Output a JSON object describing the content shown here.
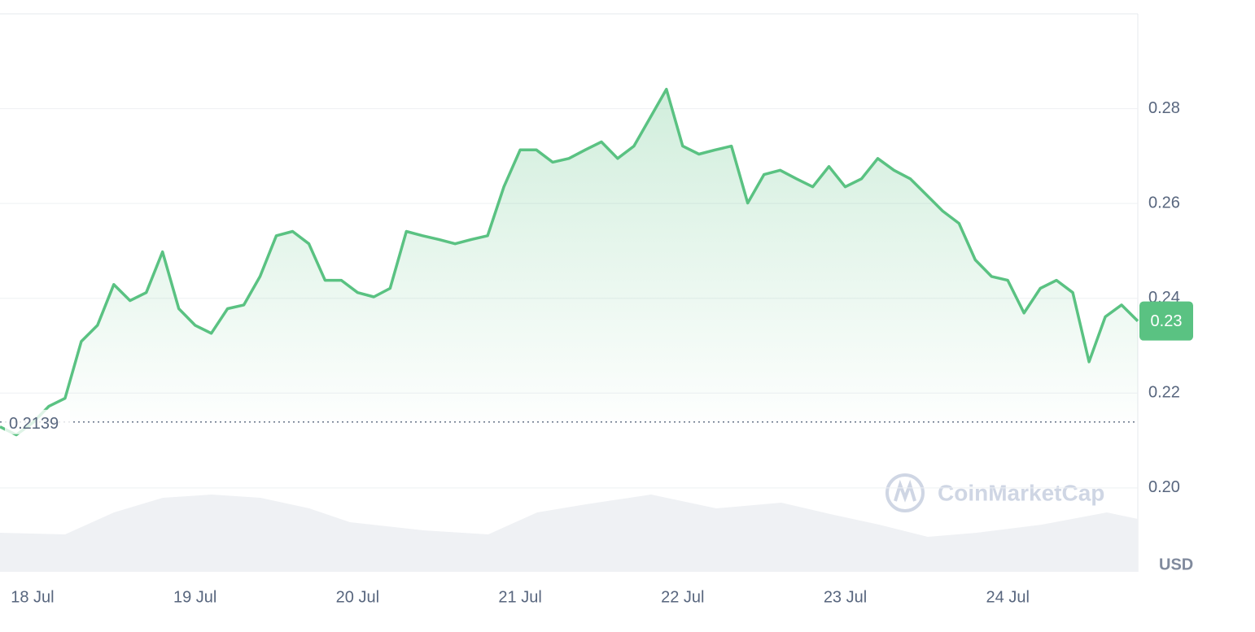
{
  "chart_data": {
    "type": "line",
    "x": [
      17.8,
      17.9,
      18.0,
      18.1,
      18.2,
      18.3,
      18.4,
      18.5,
      18.6,
      18.7,
      18.8,
      18.9,
      19.0,
      19.1,
      19.2,
      19.3,
      19.4,
      19.5,
      19.6,
      19.7,
      19.8,
      19.9,
      20.0,
      20.1,
      20.2,
      20.3,
      20.4,
      20.5,
      20.6,
      20.7,
      20.8,
      20.9,
      21.0,
      21.1,
      21.2,
      21.3,
      21.4,
      21.5,
      21.6,
      21.7,
      21.8,
      21.9,
      22.0,
      22.1,
      22.2,
      22.3,
      22.4,
      22.5,
      22.6,
      22.7,
      22.8,
      22.9,
      23.0,
      23.1,
      23.2,
      23.3,
      23.4,
      23.5,
      23.6,
      23.7,
      23.8,
      23.9,
      24.0,
      24.1,
      24.2,
      24.3,
      24.4,
      24.5,
      24.6,
      24.7,
      24.8
    ],
    "series": [
      {
        "color": "#5ac282",
        "values": [
          0.2129,
          0.2112,
          0.2137,
          0.2172,
          0.2189,
          0.2309,
          0.2343,
          0.2429,
          0.2395,
          0.2412,
          0.2498,
          0.2378,
          0.2343,
          0.2326,
          0.2378,
          0.2386,
          0.2446,
          0.2532,
          0.2541,
          0.2515,
          0.2438,
          0.2438,
          0.2412,
          0.2403,
          0.2421,
          0.2541,
          0.2532,
          0.2524,
          0.2515,
          0.2524,
          0.2532,
          0.2635,
          0.2713,
          0.2713,
          0.2687,
          0.2695,
          0.2713,
          0.273,
          0.2695,
          0.2721,
          0.2781,
          0.2841,
          0.2721,
          0.2704,
          0.2713,
          0.2721,
          0.2601,
          0.2661,
          0.267,
          0.2652,
          0.2635,
          0.2678,
          0.2635,
          0.2652,
          0.2695,
          0.267,
          0.2652,
          0.2618,
          0.2584,
          0.2558,
          0.2481,
          0.2446,
          0.2438,
          0.2369,
          0.2421,
          0.2438,
          0.2412,
          0.2266,
          0.2361,
          0.2386,
          0.2352
        ]
      }
    ],
    "xlim": [
      17.8,
      24.8
    ],
    "xticks": [
      {
        "value": 18,
        "label": "18 Jul"
      },
      {
        "value": 19,
        "label": "19 Jul"
      },
      {
        "value": 20,
        "label": "20 Jul"
      },
      {
        "value": 21,
        "label": "21 Jul"
      },
      {
        "value": 22,
        "label": "22 Jul"
      },
      {
        "value": 23,
        "label": "23 Jul"
      },
      {
        "value": 24,
        "label": "24 Jul"
      }
    ],
    "ylim": [
      0.1823,
      0.3
    ],
    "yticks": [
      {
        "value": 0.2,
        "label": "0.20"
      },
      0.22,
      0.24,
      0.26,
      0.28
    ],
    "grid": true,
    "baseline": 0.2139,
    "current_price": 0.23,
    "y_unit": "USD",
    "watermark": "CoinMarketCap"
  }
}
